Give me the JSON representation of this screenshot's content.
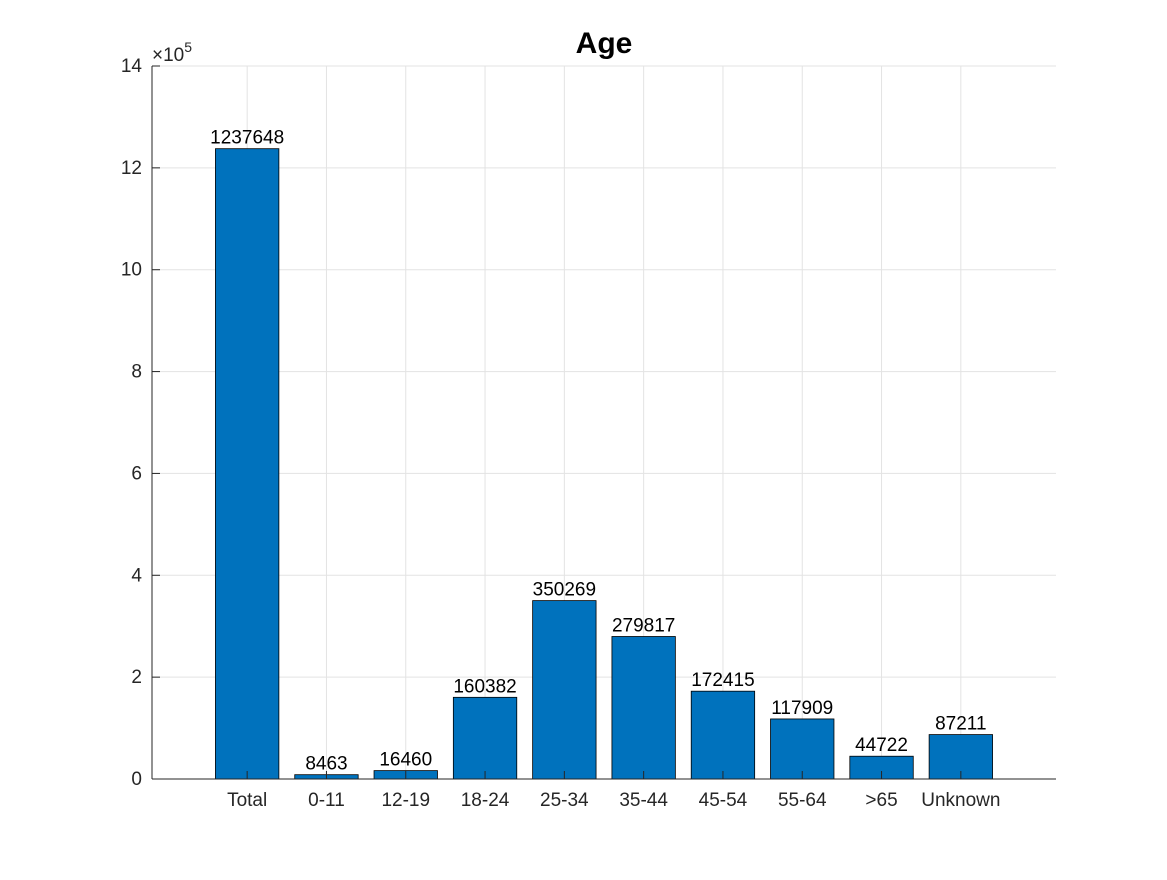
{
  "chart_data": {
    "type": "bar",
    "title": "Age",
    "xlabel": "",
    "ylabel": "",
    "categories": [
      "Total",
      "0-11",
      "12-19",
      "18-24",
      "25-34",
      "35-44",
      "45-54",
      "55-64",
      ">65",
      "Unknown"
    ],
    "values": [
      1237648,
      8463,
      16460,
      160382,
      350269,
      279817,
      172415,
      117909,
      44722,
      87211
    ],
    "data_labels": [
      "1237648",
      "8463",
      "16460",
      "160382",
      "350269",
      "279817",
      "172415",
      "117909",
      "44722",
      "87211"
    ],
    "ylim": [
      0,
      1400000
    ],
    "y_exponent_label": {
      "base": "×10",
      "exponent": "5"
    },
    "y_ticks": [
      0,
      200000,
      400000,
      600000,
      800000,
      1000000,
      1200000,
      1400000
    ],
    "y_tick_labels": [
      "0",
      "2",
      "4",
      "6",
      "8",
      "10",
      "12",
      "14"
    ],
    "grid": true,
    "legend": "none",
    "bar_color": "#0072BD"
  }
}
